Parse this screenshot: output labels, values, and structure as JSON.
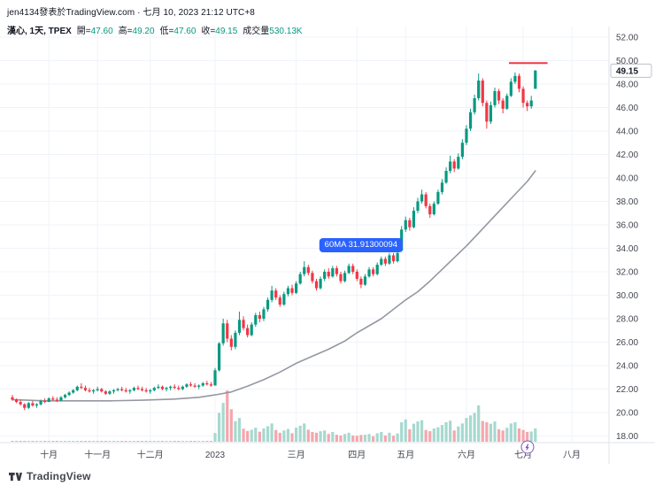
{
  "header": {
    "attribution": "jen4134發表於TradingView.com · 七月 10, 2023 21:12 UTC+8",
    "legend": {
      "symbol": "漢心, 1天, TPEX",
      "fields": [
        {
          "label": "開",
          "value": "47.60"
        },
        {
          "label": "高",
          "value": "49.20"
        },
        {
          "label": "低",
          "value": "47.60"
        },
        {
          "label": "收",
          "value": "49.15"
        }
      ],
      "volume_label": "成交量",
      "volume_value": "530.13K"
    }
  },
  "chart_data": {
    "type": "candlestick",
    "title": "漢心 1天 TPEX",
    "price_axis": {
      "min": 18,
      "max": 52,
      "tick_step": 2,
      "ticks": [
        "52.00",
        "50.00",
        "48.00",
        "46.00",
        "44.00",
        "42.00",
        "40.00",
        "38.00",
        "36.00",
        "34.00",
        "32.00",
        "30.00",
        "28.00",
        "26.00",
        "24.00",
        "22.00",
        "20.00",
        "18.00"
      ],
      "last_price": "49.15",
      "last_price_value": 49.15
    },
    "time_axis": {
      "ticks": [
        {
          "label": "十月",
          "i": 9
        },
        {
          "label": "十一月",
          "i": 21
        },
        {
          "label": "十二月",
          "i": 34
        },
        {
          "label": "2023",
          "i": 50
        },
        {
          "label": "三月",
          "i": 70
        },
        {
          "label": "四月",
          "i": 85
        },
        {
          "label": "五月",
          "i": 97
        },
        {
          "label": "六月",
          "i": 112
        },
        {
          "label": "七月",
          "i": 126
        },
        {
          "label": "八月",
          "i": 138
        }
      ]
    },
    "volume_axis_max_k": 2050,
    "last_volume_k": 530.13,
    "candles": [
      [
        21.3,
        21.5,
        21.0,
        21.1,
        25
      ],
      [
        21.1,
        21.2,
        20.8,
        20.9,
        18
      ],
      [
        20.9,
        21.1,
        20.6,
        20.7,
        15
      ],
      [
        20.7,
        20.8,
        20.2,
        20.4,
        30
      ],
      [
        20.4,
        20.9,
        20.3,
        20.8,
        22
      ],
      [
        20.8,
        21.0,
        20.5,
        20.6,
        14
      ],
      [
        20.6,
        20.8,
        20.4,
        20.7,
        12
      ],
      [
        20.7,
        21.1,
        20.6,
        21.0,
        20
      ],
      [
        21.0,
        21.2,
        20.8,
        20.9,
        16
      ],
      [
        20.9,
        21.3,
        20.9,
        21.2,
        24
      ],
      [
        21.2,
        21.4,
        21.0,
        21.1,
        15
      ],
      [
        21.1,
        21.3,
        20.9,
        21.0,
        13
      ],
      [
        21.0,
        21.4,
        21.0,
        21.3,
        21
      ],
      [
        21.3,
        21.6,
        21.2,
        21.5,
        28
      ],
      [
        21.5,
        21.8,
        21.4,
        21.7,
        30
      ],
      [
        21.7,
        22.0,
        21.6,
        21.9,
        26
      ],
      [
        21.9,
        22.3,
        21.8,
        22.2,
        35
      ],
      [
        22.2,
        22.5,
        22.0,
        22.1,
        28
      ],
      [
        22.1,
        22.3,
        21.8,
        21.9,
        20
      ],
      [
        21.9,
        22.1,
        21.7,
        21.8,
        16
      ],
      [
        21.8,
        22.0,
        21.6,
        21.9,
        14
      ],
      [
        21.9,
        22.2,
        21.8,
        22.0,
        18
      ],
      [
        22.0,
        22.1,
        21.7,
        21.8,
        15
      ],
      [
        21.8,
        21.9,
        21.5,
        21.6,
        13
      ],
      [
        21.6,
        21.9,
        21.5,
        21.8,
        12
      ],
      [
        21.8,
        22.0,
        21.6,
        21.9,
        14
      ],
      [
        21.9,
        22.1,
        21.8,
        22.0,
        16
      ],
      [
        22.0,
        22.2,
        21.8,
        21.9,
        12
      ],
      [
        21.9,
        22.1,
        21.7,
        21.8,
        11
      ],
      [
        21.8,
        22.0,
        21.6,
        21.9,
        13
      ],
      [
        21.9,
        22.2,
        21.8,
        22.1,
        17
      ],
      [
        22.1,
        22.3,
        21.9,
        22.0,
        12
      ],
      [
        22.0,
        22.2,
        21.8,
        21.9,
        10
      ],
      [
        21.9,
        22.1,
        21.7,
        21.8,
        11
      ],
      [
        21.8,
        22.0,
        21.6,
        21.9,
        12
      ],
      [
        21.9,
        22.2,
        21.8,
        22.1,
        15
      ],
      [
        22.1,
        22.4,
        22.0,
        22.2,
        18
      ],
      [
        22.2,
        22.3,
        21.9,
        22.0,
        12
      ],
      [
        22.0,
        22.2,
        21.8,
        22.1,
        11
      ],
      [
        22.1,
        22.3,
        21.9,
        22.2,
        13
      ],
      [
        22.2,
        22.4,
        22.0,
        22.1,
        12
      ],
      [
        22.1,
        22.3,
        21.9,
        22.0,
        10
      ],
      [
        22.0,
        22.3,
        21.9,
        22.2,
        14
      ],
      [
        22.2,
        22.5,
        22.1,
        22.4,
        19
      ],
      [
        22.4,
        22.6,
        22.2,
        22.3,
        15
      ],
      [
        22.3,
        22.5,
        22.1,
        22.2,
        12
      ],
      [
        22.2,
        22.4,
        22.0,
        22.3,
        13
      ],
      [
        22.3,
        22.6,
        22.2,
        22.5,
        17
      ],
      [
        22.5,
        22.7,
        22.3,
        22.4,
        14
      ],
      [
        22.4,
        22.6,
        22.2,
        22.3,
        12
      ],
      [
        22.3,
        23.8,
        22.3,
        23.6,
        350
      ],
      [
        23.6,
        26.0,
        23.5,
        25.9,
        1150
      ],
      [
        25.9,
        28.0,
        25.7,
        27.6,
        1550
      ],
      [
        27.6,
        27.9,
        26.0,
        26.3,
        2050
      ],
      [
        26.3,
        26.6,
        25.3,
        25.6,
        1300
      ],
      [
        25.6,
        27.0,
        25.4,
        26.8,
        820
      ],
      [
        26.8,
        28.6,
        26.6,
        27.9,
        950
      ],
      [
        27.9,
        28.2,
        27.0,
        27.2,
        520
      ],
      [
        27.2,
        27.5,
        26.4,
        26.6,
        430
      ],
      [
        26.6,
        27.7,
        26.5,
        27.5,
        480
      ],
      [
        27.5,
        28.5,
        27.3,
        28.3,
        560
      ],
      [
        28.3,
        28.6,
        27.7,
        28.0,
        400
      ],
      [
        28.0,
        29.0,
        27.8,
        28.8,
        530
      ],
      [
        28.8,
        29.8,
        28.6,
        29.6,
        620
      ],
      [
        29.6,
        30.8,
        29.4,
        30.4,
        730
      ],
      [
        30.4,
        30.6,
        29.6,
        29.8,
        470
      ],
      [
        29.8,
        30.0,
        29.0,
        29.2,
        360
      ],
      [
        29.2,
        30.3,
        29.1,
        30.1,
        450
      ],
      [
        30.1,
        30.8,
        29.9,
        30.6,
        510
      ],
      [
        30.6,
        30.9,
        30.0,
        30.2,
        340
      ],
      [
        30.2,
        31.2,
        30.1,
        31.0,
        560
      ],
      [
        31.0,
        32.0,
        30.9,
        31.8,
        640
      ],
      [
        31.8,
        32.9,
        31.6,
        32.4,
        730
      ],
      [
        32.4,
        32.6,
        31.7,
        31.9,
        480
      ],
      [
        31.9,
        32.1,
        31.0,
        31.2,
        390
      ],
      [
        31.2,
        31.4,
        30.4,
        30.6,
        360
      ],
      [
        30.6,
        31.6,
        30.5,
        31.4,
        420
      ],
      [
        31.4,
        32.2,
        31.2,
        32.0,
        450
      ],
      [
        32.0,
        32.3,
        31.4,
        31.6,
        310
      ],
      [
        31.6,
        32.5,
        31.5,
        32.3,
        390
      ],
      [
        32.3,
        32.5,
        31.6,
        31.8,
        280
      ],
      [
        31.8,
        32.0,
        31.0,
        31.2,
        250
      ],
      [
        31.2,
        32.1,
        31.1,
        31.9,
        310
      ],
      [
        31.9,
        32.7,
        31.8,
        32.5,
        360
      ],
      [
        32.5,
        32.7,
        31.8,
        32.0,
        250
      ],
      [
        32.0,
        32.2,
        31.2,
        31.4,
        240
      ],
      [
        31.4,
        31.6,
        30.6,
        30.9,
        270
      ],
      [
        30.9,
        31.8,
        30.8,
        31.6,
        280
      ],
      [
        31.6,
        32.4,
        31.5,
        32.2,
        310
      ],
      [
        32.2,
        32.4,
        31.6,
        31.8,
        220
      ],
      [
        31.8,
        32.8,
        31.7,
        32.6,
        340
      ],
      [
        32.6,
        33.3,
        32.5,
        33.1,
        390
      ],
      [
        33.1,
        33.3,
        32.5,
        32.7,
        250
      ],
      [
        32.7,
        33.6,
        32.6,
        33.4,
        360
      ],
      [
        33.4,
        33.6,
        32.7,
        32.9,
        240
      ],
      [
        32.9,
        33.8,
        32.8,
        33.6,
        330
      ],
      [
        33.8,
        35.9,
        33.7,
        35.6,
        780
      ],
      [
        35.6,
        36.7,
        35.4,
        36.4,
        890
      ],
      [
        36.4,
        36.6,
        35.5,
        35.8,
        500
      ],
      [
        35.8,
        37.5,
        35.7,
        37.2,
        720
      ],
      [
        37.2,
        38.3,
        37.0,
        38.0,
        810
      ],
      [
        38.0,
        39.0,
        37.8,
        38.6,
        860
      ],
      [
        38.6,
        38.8,
        37.4,
        37.6,
        470
      ],
      [
        37.6,
        37.8,
        36.6,
        36.9,
        420
      ],
      [
        36.9,
        38.0,
        36.8,
        37.8,
        530
      ],
      [
        37.8,
        39.0,
        37.7,
        38.8,
        580
      ],
      [
        38.8,
        39.9,
        38.6,
        39.6,
        670
      ],
      [
        39.6,
        40.9,
        39.5,
        40.6,
        780
      ],
      [
        40.6,
        41.9,
        40.4,
        41.4,
        840
      ],
      [
        41.4,
        41.6,
        40.5,
        40.8,
        450
      ],
      [
        40.8,
        42.1,
        40.7,
        41.8,
        610
      ],
      [
        41.8,
        43.3,
        41.6,
        43.0,
        730
      ],
      [
        43.0,
        44.5,
        42.8,
        44.2,
        950
      ],
      [
        44.2,
        45.9,
        44.0,
        45.6,
        1050
      ],
      [
        45.6,
        47.1,
        45.4,
        46.8,
        1150
      ],
      [
        46.8,
        48.9,
        46.6,
        48.3,
        1450
      ],
      [
        48.3,
        48.5,
        46.1,
        46.4,
        830
      ],
      [
        46.4,
        46.6,
        44.2,
        44.8,
        780
      ],
      [
        44.8,
        46.5,
        44.6,
        46.2,
        720
      ],
      [
        46.2,
        47.7,
        46.0,
        47.4,
        810
      ],
      [
        47.4,
        47.6,
        46.3,
        46.6,
        500
      ],
      [
        46.6,
        46.8,
        45.5,
        45.9,
        450
      ],
      [
        45.9,
        47.2,
        45.8,
        47.0,
        560
      ],
      [
        47.0,
        48.5,
        46.9,
        48.2,
        730
      ],
      [
        48.2,
        49.0,
        48.0,
        48.7,
        780
      ],
      [
        48.7,
        48.9,
        47.3,
        47.6,
        530
      ],
      [
        47.6,
        47.8,
        46.0,
        46.4,
        470
      ],
      [
        46.4,
        46.6,
        45.7,
        46.1,
        390
      ],
      [
        46.1,
        47.0,
        45.9,
        46.6,
        410
      ],
      [
        47.6,
        49.2,
        47.6,
        49.15,
        530.13
      ]
    ],
    "ma60": {
      "tooltip_text": "60MA 31.91300094",
      "value": 31.91300094,
      "line_color": "#9598a1",
      "tooltip": {
        "i": 86,
        "price": 34.3
      },
      "points": [
        [
          0,
          21.1
        ],
        [
          8,
          21.0
        ],
        [
          16,
          21.0
        ],
        [
          24,
          21.0
        ],
        [
          32,
          21.05
        ],
        [
          40,
          21.15
        ],
        [
          46,
          21.3
        ],
        [
          50,
          21.5
        ],
        [
          54,
          21.75
        ],
        [
          58,
          22.25
        ],
        [
          62,
          22.8
        ],
        [
          66,
          23.45
        ],
        [
          70,
          24.2
        ],
        [
          74,
          24.8
        ],
        [
          78,
          25.4
        ],
        [
          82,
          26.1
        ],
        [
          85,
          26.8
        ],
        [
          88,
          27.4
        ],
        [
          91,
          28.0
        ],
        [
          94,
          28.8
        ],
        [
          97,
          29.6
        ],
        [
          100,
          30.3
        ],
        [
          103,
          31.2
        ],
        [
          106,
          32.2
        ],
        [
          109,
          33.2
        ],
        [
          112,
          34.2
        ],
        [
          115,
          35.3
        ],
        [
          118,
          36.4
        ],
        [
          121,
          37.5
        ],
        [
          124,
          38.6
        ],
        [
          127,
          39.7
        ],
        [
          129,
          40.6
        ]
      ]
    },
    "red_price_line": {
      "price": 49.8,
      "from_i": 122.5,
      "to_i": 132,
      "color": "#f23645"
    },
    "publication_marker": {
      "i": 127,
      "color": "#7e57c2"
    },
    "colors": {
      "up": "#089981",
      "down": "#f23645",
      "vol_up": "#a6d9cf",
      "vol_down": "#f5a6ad",
      "grid": "#f0f3fa",
      "axis_border": "#e0e3eb",
      "axis_text": "#434651",
      "last_price_text": "#131722"
    }
  },
  "footer": {
    "brand": "TradingView"
  }
}
